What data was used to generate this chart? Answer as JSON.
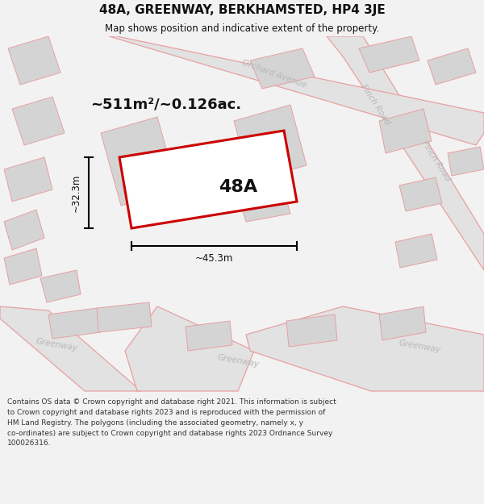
{
  "title": "48A, GREENWAY, BERKHAMSTED, HP4 3JE",
  "subtitle": "Map shows position and indicative extent of the property.",
  "area_label": "~511m²/~0.126ac.",
  "plot_label": "48A",
  "width_label": "~45.3m",
  "height_label": "~32.3m",
  "copyright_text": "Contains OS data © Crown copyright and database right 2021. This information is subject\nto Crown copyright and database rights 2023 and is reproduced with the permission of\nHM Land Registry. The polygons (including the associated geometry, namely x, y\nco-ordinates) are subject to Crown copyright and database rights 2023 Ordnance Survey\n100026316.",
  "bg_color": "#f2f2f2",
  "map_bg": "#ffffff",
  "road_fill": "#e2e2e2",
  "road_stroke": "#e8a0a0",
  "bld_fill": "#d4d4d4",
  "plot_stroke": "#cc0000",
  "plot_fill": "#ffffff",
  "dim_color": "#111111",
  "title_color": "#111111",
  "road_label_color": "#b8b8b8",
  "footer_color": "#333333"
}
